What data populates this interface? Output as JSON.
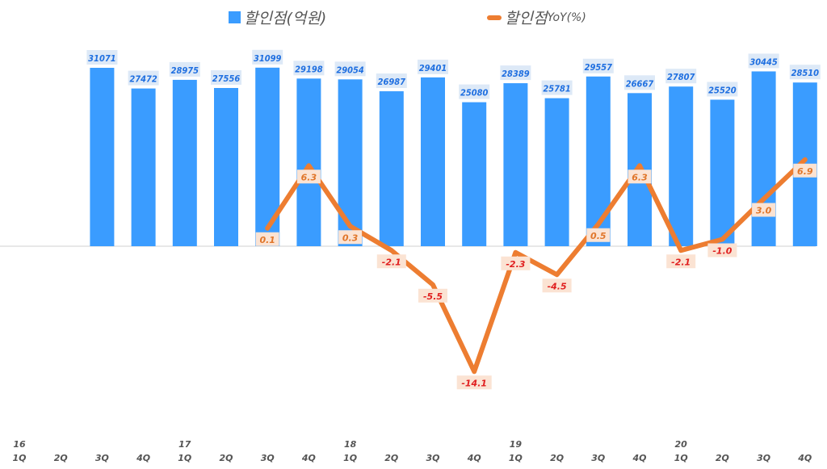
{
  "chart_data": {
    "type": "bar+line",
    "legend_position": "top",
    "grid": false,
    "categories": [
      "1Q",
      "2Q",
      "3Q",
      "4Q",
      "1Q",
      "2Q",
      "3Q",
      "4Q",
      "1Q",
      "2Q",
      "3Q",
      "4Q",
      "1Q",
      "2Q",
      "3Q",
      "4Q",
      "1Q",
      "2Q",
      "3Q",
      "4Q"
    ],
    "year_labels": [
      "16",
      "",
      "",
      "",
      "17",
      "",
      "",
      "",
      "18",
      "",
      "",
      "",
      "19",
      "",
      "",
      "",
      "20",
      "",
      "",
      ""
    ],
    "series": [
      {
        "name": "할인점(억원)",
        "type": "bar",
        "color": "#3a9cff",
        "values": [
          null,
          null,
          31071,
          27472,
          28975,
          27556,
          31099,
          29198,
          29054,
          26987,
          29401,
          25080,
          28389,
          25781,
          29557,
          26667,
          27807,
          25520,
          30445,
          28510
        ]
      },
      {
        "name": "할인점 YoY(%)",
        "name_parts": [
          "할인점",
          "YoY(%)"
        ],
        "type": "line",
        "color": "#ed7d31",
        "values": [
          null,
          null,
          null,
          null,
          null,
          null,
          0.1,
          6.3,
          0.3,
          -2.1,
          -5.5,
          -14.1,
          -2.3,
          -4.5,
          0.5,
          6.3,
          -2.1,
          -1.0,
          3.0,
          6.9
        ]
      }
    ],
    "label_colors": {
      "bar_label": "#1f6fe0",
      "bar_label_bg": "#dde9f7",
      "line_label_pos": "#e0762a",
      "line_label_neg": "#e02020",
      "line_label_bg": "#fbe3d3"
    }
  }
}
